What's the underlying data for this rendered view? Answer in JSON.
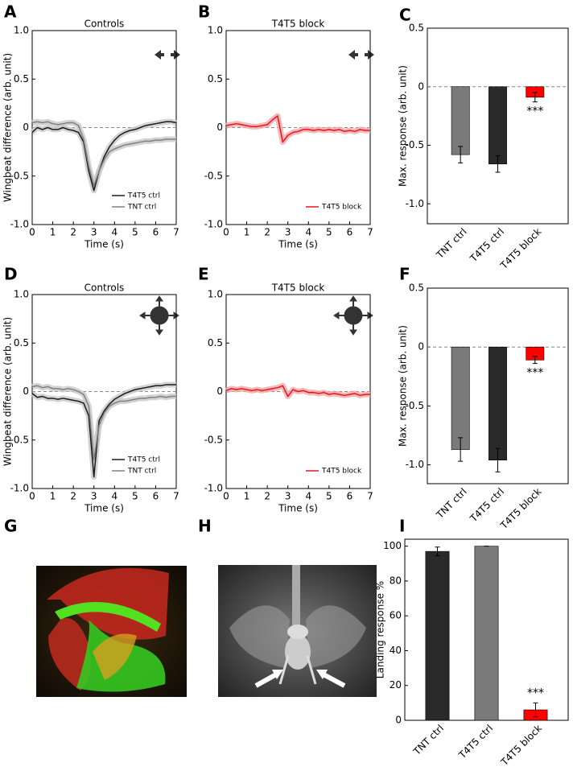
{
  "chart_data": [
    {
      "type": "line",
      "panel": "A",
      "title": "Controls",
      "xlabel": "Time (s)",
      "ylabel": "Wingbeat difference (arb. unit)",
      "x": [
        0,
        0.25,
        0.5,
        0.75,
        1,
        1.25,
        1.5,
        1.75,
        2,
        2.25,
        2.5,
        2.75,
        3,
        3.25,
        3.5,
        3.75,
        4,
        4.25,
        4.5,
        4.75,
        5,
        5.25,
        5.5,
        5.75,
        6,
        6.25,
        6.5,
        6.75,
        7
      ],
      "series": [
        {
          "name": "T4T5 ctrl",
          "color": "#1a1a1a",
          "band_color": "#c8c8c8",
          "values": [
            -0.05,
            0.0,
            -0.02,
            0.0,
            -0.02,
            -0.02,
            0.0,
            -0.02,
            -0.03,
            -0.05,
            -0.15,
            -0.45,
            -0.65,
            -0.45,
            -0.3,
            -0.2,
            -0.13,
            -0.08,
            -0.05,
            -0.03,
            -0.02,
            0.0,
            0.02,
            0.03,
            0.04,
            0.05,
            0.06,
            0.06,
            0.05
          ]
        },
        {
          "name": "TNT ctrl",
          "color": "#808080",
          "band_color": "#c8c8c8",
          "values": [
            0.05,
            0.06,
            0.05,
            0.06,
            0.04,
            0.03,
            0.04,
            0.05,
            0.05,
            0.02,
            -0.12,
            -0.4,
            -0.6,
            -0.45,
            -0.33,
            -0.25,
            -0.22,
            -0.2,
            -0.18,
            -0.17,
            -0.16,
            -0.15,
            -0.14,
            -0.14,
            -0.13,
            -0.13,
            -0.12,
            -0.12,
            -0.12
          ]
        }
      ],
      "xlim": [
        0,
        7
      ],
      "xticks": [
        0,
        1,
        2,
        3,
        4,
        5,
        6,
        7
      ],
      "ylim": [
        -1,
        1
      ],
      "yticks": [
        {
          "value": 1,
          "label": "1.0"
        },
        0.5,
        0,
        -0.5,
        {
          "value": -1,
          "label": "-1.0"
        }
      ],
      "zero_line": true,
      "legend": "lower right"
    },
    {
      "type": "line",
      "panel": "B",
      "title": "T4T5 block",
      "xlabel": "Time (s)",
      "x": [
        0,
        0.25,
        0.5,
        0.75,
        1,
        1.25,
        1.5,
        1.75,
        2,
        2.25,
        2.5,
        2.75,
        3,
        3.25,
        3.5,
        3.75,
        4,
        4.25,
        4.5,
        4.75,
        5,
        5.25,
        5.5,
        5.75,
        6,
        6.25,
        6.5,
        6.75,
        7
      ],
      "series": [
        {
          "name": "T4T5 block",
          "color": "#e8141c",
          "band_color": "#f4a8a8",
          "values": [
            0.02,
            0.03,
            0.04,
            0.03,
            0.02,
            0.01,
            0.01,
            0.02,
            0.03,
            0.08,
            0.12,
            -0.15,
            -0.08,
            -0.05,
            -0.04,
            -0.02,
            -0.02,
            -0.03,
            -0.02,
            -0.03,
            -0.02,
            -0.03,
            -0.02,
            -0.04,
            -0.03,
            -0.04,
            -0.02,
            -0.03,
            -0.03
          ]
        }
      ],
      "xlim": [
        0,
        7
      ],
      "xticks": [
        0,
        1,
        2,
        3,
        4,
        5,
        6,
        7
      ],
      "ylim": [
        -1,
        1
      ],
      "yticks": [
        {
          "value": 1,
          "label": "1.0"
        },
        0.5,
        0,
        -0.5,
        {
          "value": -1,
          "label": "-1.0"
        }
      ],
      "zero_line": true,
      "legend": "lower right"
    },
    {
      "type": "bar",
      "panel": "C",
      "ylabel": "Max. response (arb. unit)",
      "categories": [
        "TNT ctrl",
        "T4T5 ctrl",
        "T4T5 block"
      ],
      "values": [
        -0.58,
        -0.66,
        -0.09
      ],
      "errors": [
        0.07,
        0.07,
        0.04
      ],
      "colors": [
        "#7a7a7a",
        "#2a2a2a",
        "#ff0000"
      ],
      "annotation": "***",
      "ylim": [
        -1.17,
        0.5
      ],
      "yticks": [
        0.5,
        0,
        -0.5,
        {
          "value": -1,
          "label": "-1.0"
        }
      ],
      "zero_line": true
    },
    {
      "type": "line",
      "panel": "D",
      "title": "Controls",
      "xlabel": "Time (s)",
      "ylabel": "Wingbeat difference (arb. unit)",
      "x": [
        0,
        0.25,
        0.5,
        0.75,
        1,
        1.25,
        1.5,
        1.75,
        2,
        2.25,
        2.5,
        2.75,
        3,
        3.25,
        3.5,
        3.75,
        4,
        4.25,
        4.5,
        4.75,
        5,
        5.25,
        5.5,
        5.75,
        6,
        6.25,
        6.5,
        6.75,
        7
      ],
      "series": [
        {
          "name": "T4T5 ctrl",
          "color": "#1a1a1a",
          "band_color": "#c8c8c8",
          "values": [
            -0.02,
            -0.06,
            -0.05,
            -0.07,
            -0.07,
            -0.08,
            -0.07,
            -0.08,
            -0.09,
            -0.1,
            -0.12,
            -0.25,
            -0.88,
            -0.3,
            -0.2,
            -0.13,
            -0.08,
            -0.05,
            -0.02,
            0.0,
            0.02,
            0.03,
            0.04,
            0.05,
            0.06,
            0.06,
            0.07,
            0.07,
            0.07
          ]
        },
        {
          "name": "TNT ctrl",
          "color": "#808080",
          "band_color": "#c8c8c8",
          "values": [
            0.05,
            0.06,
            0.04,
            0.05,
            0.03,
            0.03,
            0.02,
            0.03,
            0.02,
            0.0,
            -0.03,
            -0.15,
            -0.7,
            -0.35,
            -0.22,
            -0.15,
            -0.12,
            -0.1,
            -0.1,
            -0.09,
            -0.08,
            -0.07,
            -0.07,
            -0.06,
            -0.06,
            -0.05,
            -0.06,
            -0.05,
            -0.05
          ]
        }
      ],
      "xlim": [
        0,
        7
      ],
      "xticks": [
        0,
        1,
        2,
        3,
        4,
        5,
        6,
        7
      ],
      "ylim": [
        -1,
        1
      ],
      "yticks": [
        {
          "value": 1,
          "label": "1.0"
        },
        0.5,
        0,
        -0.5,
        {
          "value": -1,
          "label": "-1.0"
        }
      ],
      "zero_line": true,
      "legend": "lower right"
    },
    {
      "type": "line",
      "panel": "E",
      "title": "T4T5 block",
      "xlabel": "Time (s)",
      "x": [
        0,
        0.25,
        0.5,
        0.75,
        1,
        1.25,
        1.5,
        1.75,
        2,
        2.25,
        2.5,
        2.75,
        3,
        3.25,
        3.5,
        3.75,
        4,
        4.25,
        4.5,
        4.75,
        5,
        5.25,
        5.5,
        5.75,
        6,
        6.25,
        6.5,
        6.75,
        7
      ],
      "series": [
        {
          "name": "T4T5 block",
          "color": "#e8141c",
          "band_color": "#f4a8a8",
          "values": [
            0.01,
            0.03,
            0.02,
            0.03,
            0.02,
            0.01,
            0.02,
            0.01,
            0.02,
            0.03,
            0.04,
            0.06,
            -0.05,
            0.02,
            0.0,
            0.01,
            -0.01,
            -0.01,
            -0.02,
            -0.01,
            -0.03,
            -0.02,
            -0.03,
            -0.04,
            -0.03,
            -0.02,
            -0.04,
            -0.03,
            -0.03
          ]
        }
      ],
      "xlim": [
        0,
        7
      ],
      "xticks": [
        0,
        1,
        2,
        3,
        4,
        5,
        6,
        7
      ],
      "ylim": [
        -1,
        1
      ],
      "yticks": [
        {
          "value": 1,
          "label": "1.0"
        },
        0.5,
        0,
        -0.5,
        {
          "value": -1,
          "label": "-1.0"
        }
      ],
      "zero_line": true,
      "legend": "lower right"
    },
    {
      "type": "bar",
      "panel": "F",
      "ylabel": "Max. response (arb. unit)",
      "categories": [
        "TNT ctrl",
        "T4T5 ctrl",
        "T4T5 block"
      ],
      "values": [
        -0.87,
        -0.96,
        -0.11
      ],
      "errors": [
        0.1,
        0.1,
        0.03
      ],
      "colors": [
        "#7a7a7a",
        "#2a2a2a",
        "#ff0000"
      ],
      "annotation": "***",
      "ylim": [
        -1.16,
        0.5
      ],
      "yticks": [
        0.5,
        0,
        -0.5,
        {
          "value": -1,
          "label": "-1.0"
        }
      ],
      "zero_line": true
    },
    {
      "type": "bar",
      "panel": "I",
      "ylabel": "Landing response %",
      "categories": [
        "TNT ctrl",
        "T4T5 ctrl",
        "T4T5 block"
      ],
      "values": [
        97,
        100,
        6
      ],
      "errors": [
        2.5,
        0,
        4
      ],
      "colors": [
        "#2a2a2a",
        "#7a7a7a",
        "#ff0000"
      ],
      "annotation": "***",
      "ylim": [
        0,
        104
      ],
      "yticks": [
        0,
        20,
        40,
        60,
        80,
        100
      ],
      "zero_line": false
    }
  ],
  "images": [
    {
      "panel": "G"
    },
    {
      "panel": "H"
    }
  ]
}
